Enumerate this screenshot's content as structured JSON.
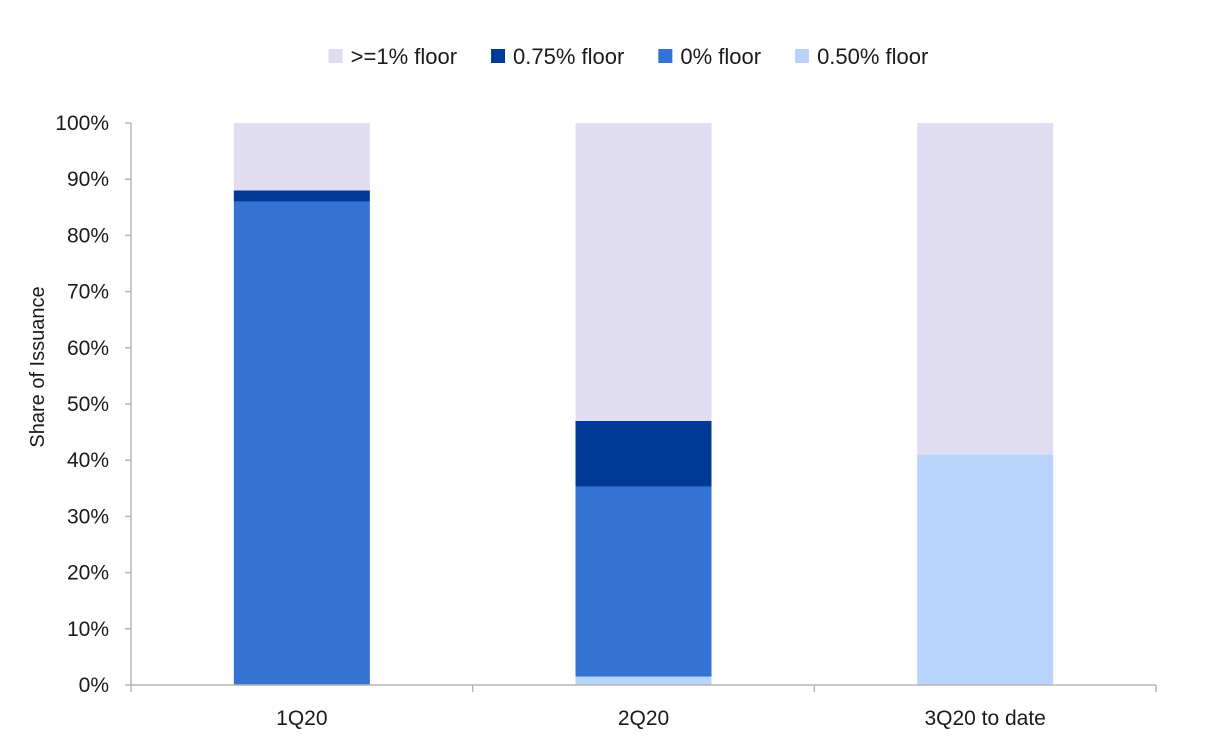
{
  "chart_data": {
    "type": "bar",
    "stacked": true,
    "title": "",
    "xlabel": "",
    "ylabel": "Share of Issuance",
    "ylim": [
      0,
      100
    ],
    "yticks": [
      "0%",
      "10%",
      "20%",
      "30%",
      "40%",
      "50%",
      "60%",
      "70%",
      "80%",
      "90%",
      "100%"
    ],
    "categories": [
      "1Q20",
      "2Q20",
      "3Q20 to date"
    ],
    "series": [
      {
        "name": "0.50% floor",
        "color": "#b8d4fb",
        "values": [
          0,
          1.5,
          41
        ]
      },
      {
        "name": "0% floor",
        "color": "#3373d4",
        "values": [
          86,
          33.8,
          0
        ]
      },
      {
        "name": "0.75% floor",
        "color": "#003a96",
        "values": [
          2,
          11.7,
          0
        ]
      },
      {
        "name": ">=1% floor",
        "color": "#e0ddf3",
        "values": [
          12,
          53,
          59
        ]
      }
    ],
    "legend": {
      "position": "top",
      "order": [
        ">=1% floor",
        "0.75% floor",
        "0% floor",
        "0.50% floor"
      ]
    },
    "grid": false
  }
}
